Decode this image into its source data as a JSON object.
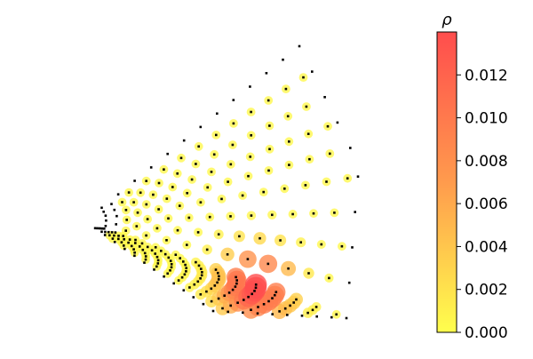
{
  "chart_data": {
    "type": "scatter",
    "title": "",
    "xlabel": "",
    "ylabel": "",
    "axes_visible": false,
    "point_color": "#000000",
    "grid": {
      "shape": "triangular lattice inside a fan-shaped sector, 19 rows by 13 columns of sites",
      "rows": 19,
      "cols": 13
    },
    "density": {
      "peak_value": 0.014,
      "background_value": 0.0005,
      "edge_value": 0.0,
      "peak_site": [
        9,
        7
      ]
    },
    "colorbar": {
      "label": "ρ",
      "min": 0.0,
      "max": 0.014,
      "ticks": [
        {
          "value": 0.0,
          "label": "0.000"
        },
        {
          "value": 0.002,
          "label": "0.002"
        },
        {
          "value": 0.004,
          "label": "0.004"
        },
        {
          "value": 0.006,
          "label": "0.006"
        },
        {
          "value": 0.008,
          "label": "0.008"
        },
        {
          "value": 0.01,
          "label": "0.010"
        },
        {
          "value": 0.012,
          "label": "0.012"
        }
      ],
      "colors": {
        "low": "#ffff4d",
        "mid": "#ff9b4d",
        "high": "#ff4d4d"
      },
      "placement": "right"
    }
  }
}
